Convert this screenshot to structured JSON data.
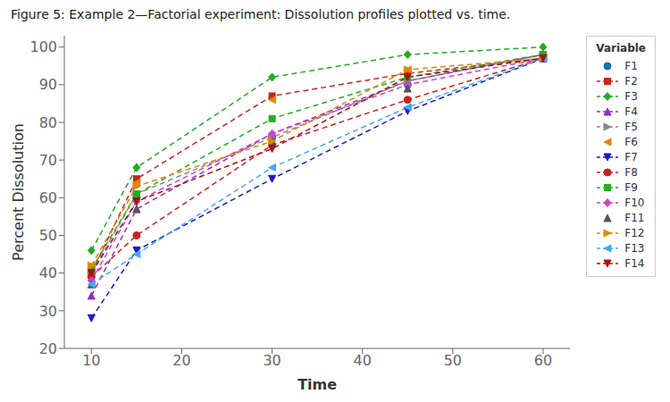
{
  "chart_data": {
    "type": "line",
    "title": "Figure 5: Example 2—Factorial experiment: Dissolution profiles plotted vs. time.",
    "xlabel": "Time",
    "ylabel": "Percent Dissolution",
    "legend_title": "Variable",
    "legend": "right",
    "grid": false,
    "xlim": [
      7,
      63
    ],
    "ylim": [
      20,
      103
    ],
    "xticks": [
      10,
      20,
      30,
      40,
      50,
      60
    ],
    "yticks": [
      20,
      30,
      40,
      50,
      60,
      70,
      80,
      90,
      100
    ],
    "x": [
      10,
      15,
      30,
      45,
      60
    ],
    "series": [
      {
        "name": "F1",
        "color": "#1a6faf",
        "marker": "circle",
        "line_style": "none",
        "values": [
          40,
          60,
          76,
          90,
          98
        ]
      },
      {
        "name": "F2",
        "color": "#cc2222",
        "marker": "square",
        "line_style": "dashed",
        "values": [
          40,
          65,
          87,
          93,
          97
        ]
      },
      {
        "name": "F3",
        "color": "#22aa22",
        "marker": "diamond",
        "line_style": "dashed",
        "values": [
          46,
          68,
          92,
          98,
          100
        ]
      },
      {
        "name": "F4",
        "color": "#9030c0",
        "marker": "triangle-up",
        "line_style": "dashed",
        "values": [
          34,
          57,
          77,
          91,
          98
        ]
      },
      {
        "name": "F5",
        "color": "#888888",
        "marker": "triangle-right",
        "line_style": "dashed",
        "values": [
          40,
          61,
          76,
          91,
          98
        ]
      },
      {
        "name": "F6",
        "color": "#e08800",
        "marker": "triangle-left",
        "line_style": "none",
        "values": [
          42,
          64,
          86,
          94,
          97
        ]
      },
      {
        "name": "F7",
        "color": "#1a1acc",
        "marker": "triangle-down",
        "line_style": "dashed",
        "values": [
          28,
          46,
          65,
          83,
          97
        ]
      },
      {
        "name": "F8",
        "color": "#cc2020",
        "marker": "circle",
        "line_style": "dashed",
        "values": [
          39,
          50,
          74,
          86,
          97
        ]
      },
      {
        "name": "F9",
        "color": "#20b020",
        "marker": "square",
        "line_style": "dashed",
        "values": [
          41,
          61,
          81,
          92,
          98
        ]
      },
      {
        "name": "F10",
        "color": "#cc44cc",
        "marker": "diamond",
        "line_style": "dashed",
        "values": [
          38,
          59,
          77,
          90,
          97
        ]
      },
      {
        "name": "F11",
        "color": "#555555",
        "marker": "triangle-up",
        "line_style": "none",
        "values": [
          37,
          57,
          75,
          89,
          97
        ]
      },
      {
        "name": "F12",
        "color": "#e08800",
        "marker": "triangle-right",
        "line_style": "dashed",
        "values": [
          42,
          63,
          75,
          94,
          97
        ]
      },
      {
        "name": "F13",
        "color": "#44aaee",
        "marker": "triangle-left",
        "line_style": "dashed",
        "values": [
          37,
          45,
          68,
          84,
          97
        ]
      },
      {
        "name": "F14",
        "color": "#aa1111",
        "marker": "triangle-down",
        "line_style": "dashed",
        "values": [
          40,
          59,
          73,
          92,
          97
        ]
      }
    ]
  }
}
